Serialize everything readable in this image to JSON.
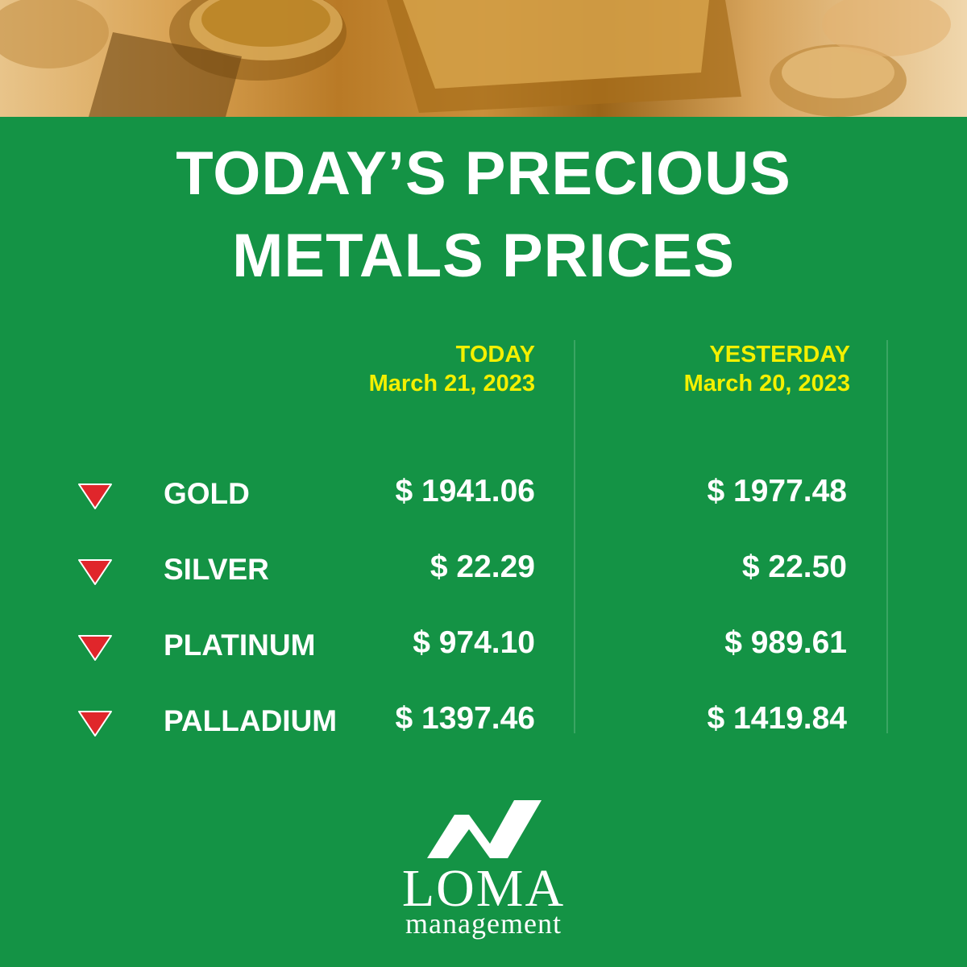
{
  "title": {
    "line1": "TODAY’S PRECIOUS",
    "line2": "METALS PRICES"
  },
  "columns": {
    "today": {
      "label": "TODAY",
      "date": "March 21, 2023"
    },
    "yesterday": {
      "label": "YESTERDAY",
      "date": "March 20, 2023"
    }
  },
  "rows": [
    {
      "metal": "GOLD",
      "today": "$ 1941.06",
      "yesterday": "$ 1977.48",
      "trend": "down-arrow-icon"
    },
    {
      "metal": "SILVER",
      "today": "$ 22.29",
      "yesterday": "$ 22.50",
      "trend": "down-arrow-icon"
    },
    {
      "metal": "PLATINUM",
      "today": "$ 974.10",
      "yesterday": "$ 989.61",
      "trend": "down-arrow-icon"
    },
    {
      "metal": "PALLADIUM",
      "today": "$ 1397.46",
      "yesterday": "$ 1419.84",
      "trend": "down-arrow-icon"
    }
  ],
  "logo": {
    "name": "LOMA",
    "subtitle": "management"
  },
  "colors": {
    "background": "#149345",
    "accent": "#f4f000",
    "text": "#ffffff",
    "down": "#e0262b"
  }
}
